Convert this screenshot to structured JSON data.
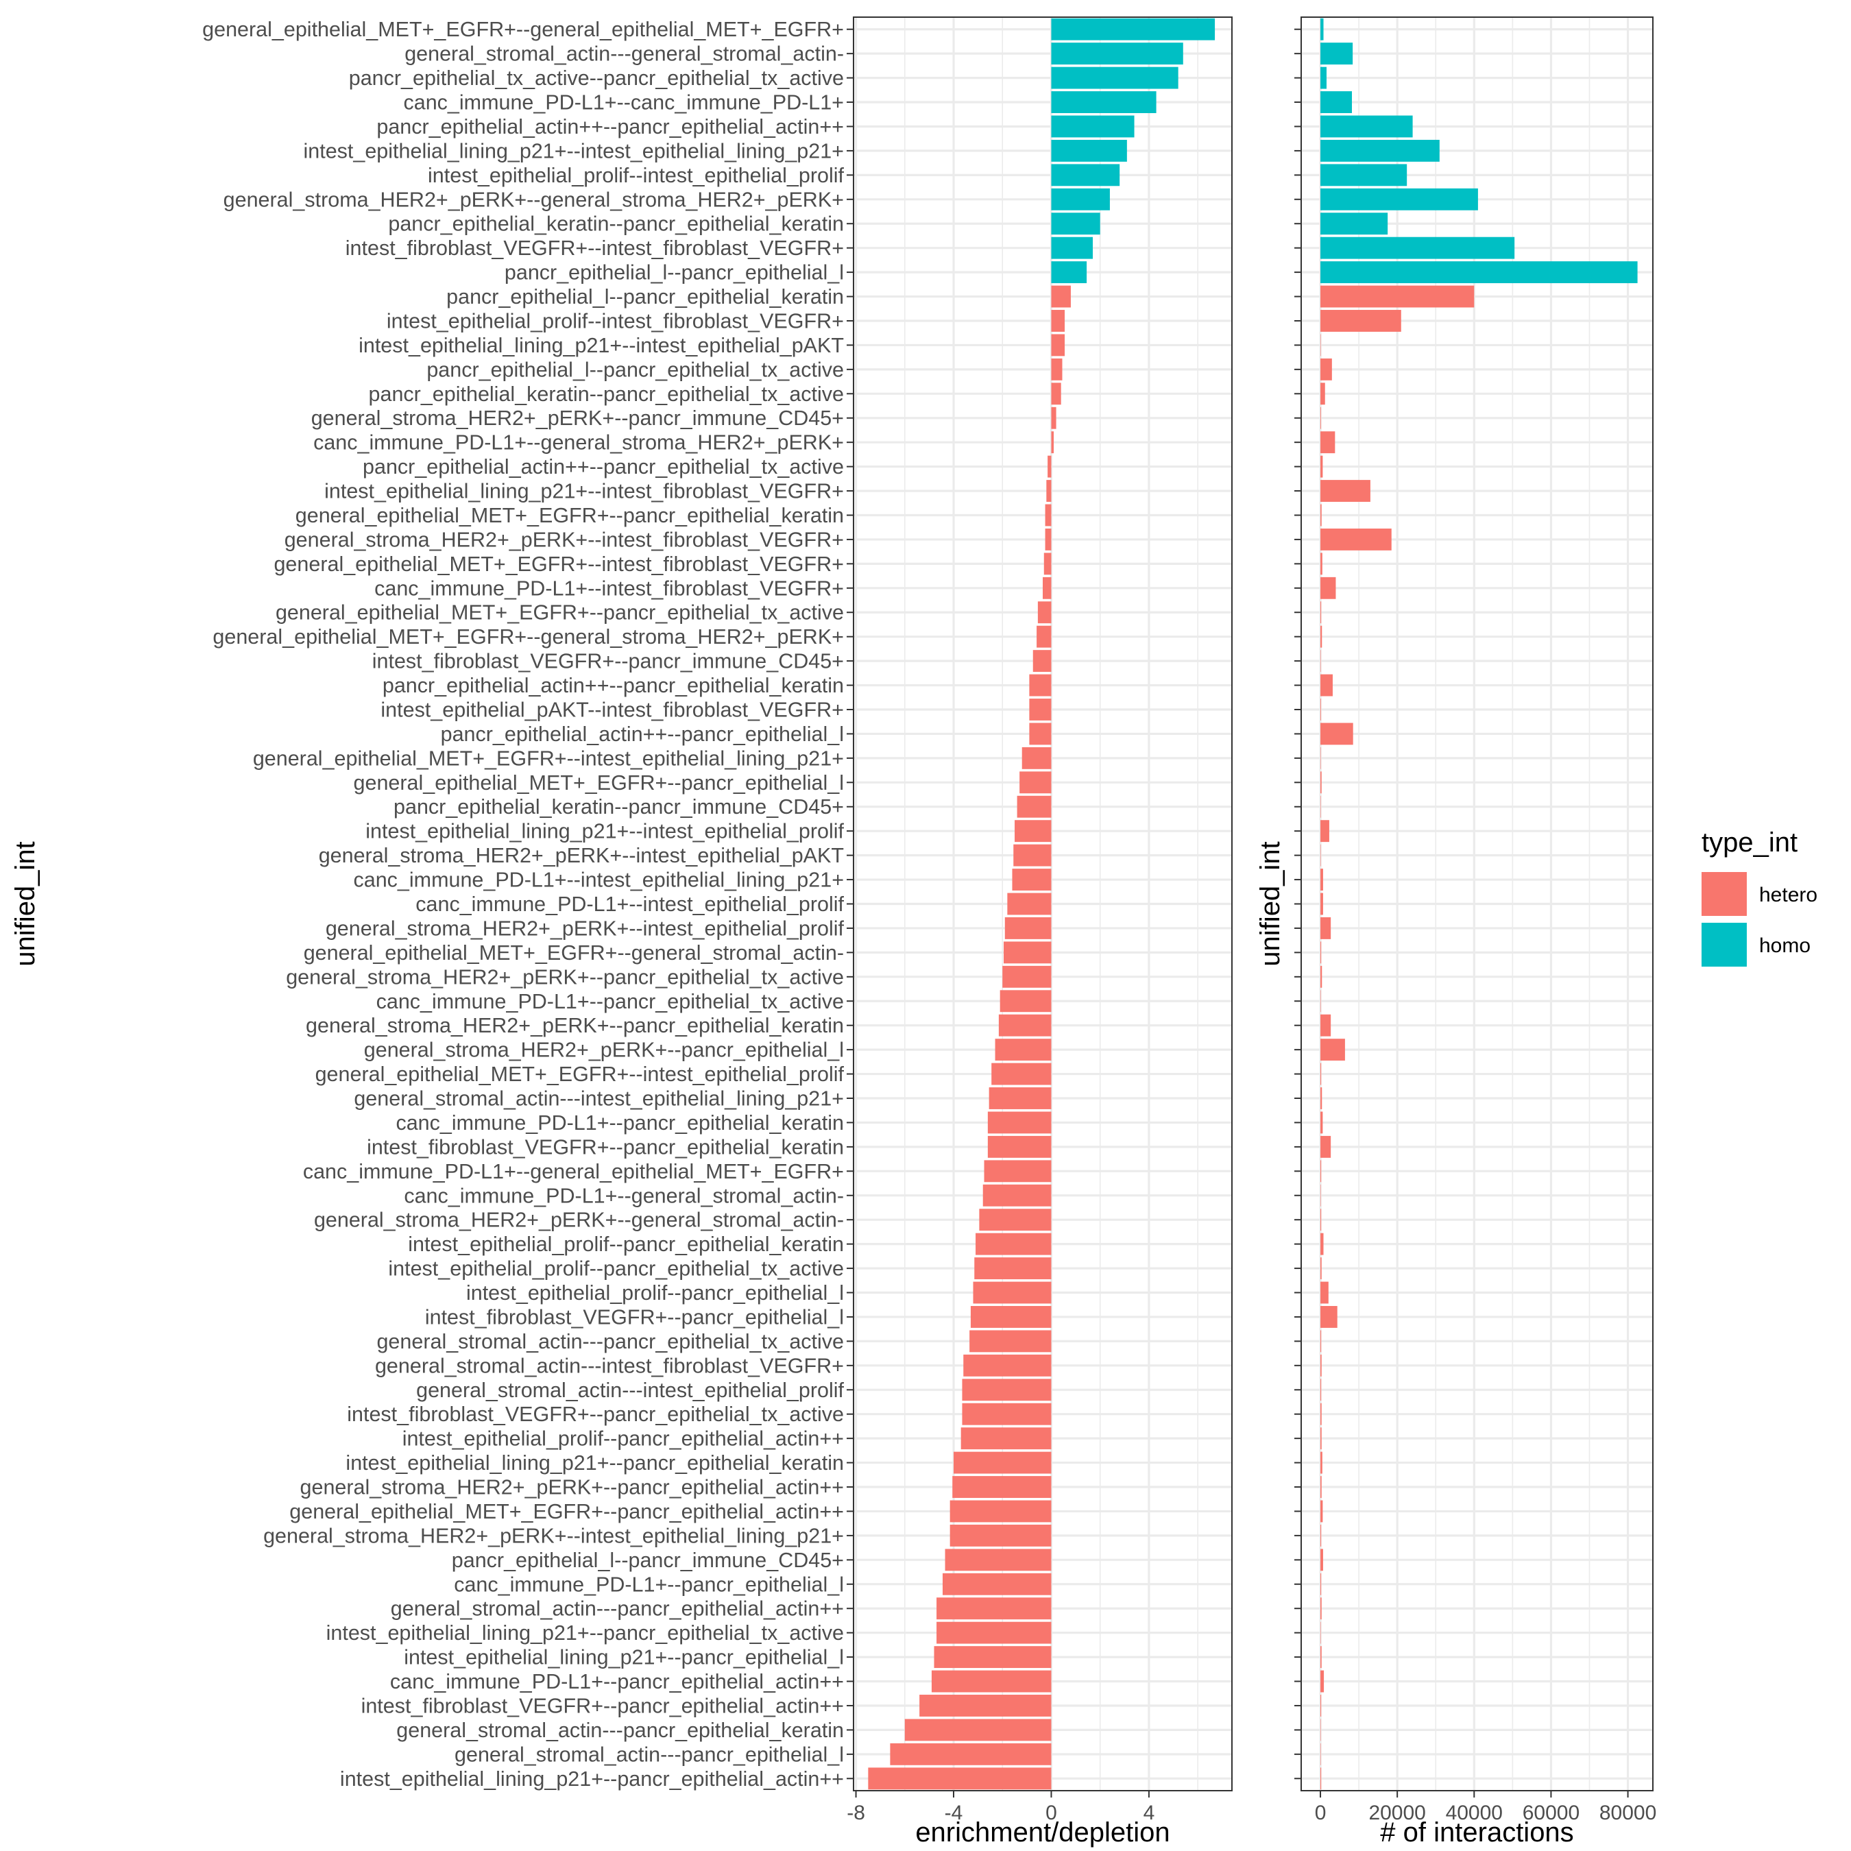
{
  "chart_data": [
    {
      "type": "bar",
      "orientation": "horizontal",
      "xlabel": "enrichment/depletion",
      "ylabel": "unified_int",
      "xlim": [
        -8.1,
        7.4
      ],
      "xticks": [
        -8,
        -4,
        0,
        4
      ],
      "grid": true,
      "categories": [
        "general_epithelial_MET+_EGFR+--general_epithelial_MET+_EGFR+",
        "general_stromal_actin---general_stromal_actin-",
        "pancr_epithelial_tx_active--pancr_epithelial_tx_active",
        "canc_immune_PD-L1+--canc_immune_PD-L1+",
        "pancr_epithelial_actin++--pancr_epithelial_actin++",
        "intest_epithelial_lining_p21+--intest_epithelial_lining_p21+",
        "intest_epithelial_prolif--intest_epithelial_prolif",
        "general_stroma_HER2+_pERK+--general_stroma_HER2+_pERK+",
        "pancr_epithelial_keratin--pancr_epithelial_keratin",
        "intest_fibroblast_VEGFR+--intest_fibroblast_VEGFR+",
        "pancr_epithelial_l--pancr_epithelial_l",
        "pancr_epithelial_l--pancr_epithelial_keratin",
        "intest_epithelial_prolif--intest_fibroblast_VEGFR+",
        "intest_epithelial_lining_p21+--intest_epithelial_pAKT",
        "pancr_epithelial_l--pancr_epithelial_tx_active",
        "pancr_epithelial_keratin--pancr_epithelial_tx_active",
        "general_stroma_HER2+_pERK+--pancr_immune_CD45+",
        "canc_immune_PD-L1+--general_stroma_HER2+_pERK+",
        "pancr_epithelial_actin++--pancr_epithelial_tx_active",
        "intest_epithelial_lining_p21+--intest_fibroblast_VEGFR+",
        "general_epithelial_MET+_EGFR+--pancr_epithelial_keratin",
        "general_stroma_HER2+_pERK+--intest_fibroblast_VEGFR+",
        "general_epithelial_MET+_EGFR+--intest_fibroblast_VEGFR+",
        "canc_immune_PD-L1+--intest_fibroblast_VEGFR+",
        "general_epithelial_MET+_EGFR+--pancr_epithelial_tx_active",
        "general_epithelial_MET+_EGFR+--general_stroma_HER2+_pERK+",
        "intest_fibroblast_VEGFR+--pancr_immune_CD45+",
        "pancr_epithelial_actin++--pancr_epithelial_keratin",
        "intest_epithelial_pAKT--intest_fibroblast_VEGFR+",
        "pancr_epithelial_actin++--pancr_epithelial_l",
        "general_epithelial_MET+_EGFR+--intest_epithelial_lining_p21+",
        "general_epithelial_MET+_EGFR+--pancr_epithelial_l",
        "pancr_epithelial_keratin--pancr_immune_CD45+",
        "intest_epithelial_lining_p21+--intest_epithelial_prolif",
        "general_stroma_HER2+_pERK+--intest_epithelial_pAKT",
        "canc_immune_PD-L1+--intest_epithelial_lining_p21+",
        "canc_immune_PD-L1+--intest_epithelial_prolif",
        "general_stroma_HER2+_pERK+--intest_epithelial_prolif",
        "general_epithelial_MET+_EGFR+--general_stromal_actin-",
        "general_stroma_HER2+_pERK+--pancr_epithelial_tx_active",
        "canc_immune_PD-L1+--pancr_epithelial_tx_active",
        "general_stroma_HER2+_pERK+--pancr_epithelial_keratin",
        "general_stroma_HER2+_pERK+--pancr_epithelial_l",
        "general_epithelial_MET+_EGFR+--intest_epithelial_prolif",
        "general_stromal_actin---intest_epithelial_lining_p21+",
        "canc_immune_PD-L1+--pancr_epithelial_keratin",
        "intest_fibroblast_VEGFR+--pancr_epithelial_keratin",
        "canc_immune_PD-L1+--general_epithelial_MET+_EGFR+",
        "canc_immune_PD-L1+--general_stromal_actin-",
        "general_stroma_HER2+_pERK+--general_stromal_actin-",
        "intest_epithelial_prolif--pancr_epithelial_keratin",
        "intest_epithelial_prolif--pancr_epithelial_tx_active",
        "intest_epithelial_prolif--pancr_epithelial_l",
        "intest_fibroblast_VEGFR+--pancr_epithelial_l",
        "general_stromal_actin---pancr_epithelial_tx_active",
        "general_stromal_actin---intest_fibroblast_VEGFR+",
        "general_stromal_actin---intest_epithelial_prolif",
        "intest_fibroblast_VEGFR+--pancr_epithelial_tx_active",
        "intest_epithelial_prolif--pancr_epithelial_actin++",
        "intest_epithelial_lining_p21+--pancr_epithelial_keratin",
        "general_stroma_HER2+_pERK+--pancr_epithelial_actin++",
        "general_epithelial_MET+_EGFR+--pancr_epithelial_actin++",
        "general_stroma_HER2+_pERK+--intest_epithelial_lining_p21+",
        "pancr_epithelial_l--pancr_immune_CD45+",
        "canc_immune_PD-L1+--pancr_epithelial_l",
        "general_stromal_actin---pancr_epithelial_actin++",
        "intest_epithelial_lining_p21+--pancr_epithelial_tx_active",
        "intest_epithelial_lining_p21+--pancr_epithelial_l",
        "canc_immune_PD-L1+--pancr_epithelial_actin++",
        "intest_fibroblast_VEGFR+--pancr_epithelial_actin++",
        "general_stromal_actin---pancr_epithelial_keratin",
        "general_stromal_actin---pancr_epithelial_l",
        "intest_epithelial_lining_p21+--pancr_epithelial_actin++"
      ],
      "type_int": [
        "homo",
        "homo",
        "homo",
        "homo",
        "homo",
        "homo",
        "homo",
        "homo",
        "homo",
        "homo",
        "homo",
        "hetero",
        "hetero",
        "hetero",
        "hetero",
        "hetero",
        "hetero",
        "hetero",
        "hetero",
        "hetero",
        "hetero",
        "hetero",
        "hetero",
        "hetero",
        "hetero",
        "hetero",
        "hetero",
        "hetero",
        "hetero",
        "hetero",
        "hetero",
        "hetero",
        "hetero",
        "hetero",
        "hetero",
        "hetero",
        "hetero",
        "hetero",
        "hetero",
        "hetero",
        "hetero",
        "hetero",
        "hetero",
        "hetero",
        "hetero",
        "hetero",
        "hetero",
        "hetero",
        "hetero",
        "hetero",
        "hetero",
        "hetero",
        "hetero",
        "hetero",
        "hetero",
        "hetero",
        "hetero",
        "hetero",
        "hetero",
        "hetero",
        "hetero",
        "hetero",
        "hetero",
        "hetero",
        "hetero",
        "hetero",
        "hetero",
        "hetero",
        "hetero",
        "hetero",
        "hetero",
        "hetero",
        "hetero"
      ],
      "values": [
        6.7,
        5.4,
        5.2,
        4.3,
        3.4,
        3.1,
        2.8,
        2.4,
        2.0,
        1.7,
        1.45,
        0.8,
        0.55,
        0.55,
        0.45,
        0.4,
        0.2,
        0.1,
        -0.15,
        -0.2,
        -0.25,
        -0.25,
        -0.3,
        -0.35,
        -0.55,
        -0.6,
        -0.75,
        -0.9,
        -0.9,
        -0.9,
        -1.2,
        -1.3,
        -1.4,
        -1.5,
        -1.55,
        -1.6,
        -1.8,
        -1.9,
        -1.95,
        -2.0,
        -2.1,
        -2.15,
        -2.3,
        -2.45,
        -2.55,
        -2.6,
        -2.6,
        -2.75,
        -2.8,
        -2.95,
        -3.1,
        -3.15,
        -3.2,
        -3.3,
        -3.35,
        -3.6,
        -3.65,
        -3.65,
        -3.7,
        -4.0,
        -4.05,
        -4.15,
        -4.15,
        -4.35,
        -4.45,
        -4.7,
        -4.7,
        -4.8,
        -4.9,
        -5.4,
        -6.0,
        -6.6,
        -7.5
      ]
    },
    {
      "type": "bar",
      "orientation": "horizontal",
      "xlabel": "# of interactions",
      "ylabel": "unified_int",
      "xlim": [
        -5000,
        86500
      ],
      "xticks": [
        0,
        20000,
        40000,
        60000,
        80000
      ],
      "grid": true,
      "values": [
        800,
        8400,
        1600,
        8200,
        24000,
        31000,
        22500,
        41000,
        17500,
        50500,
        82500,
        40000,
        21000,
        100,
        3000,
        1200,
        150,
        3800,
        600,
        13000,
        300,
        18500,
        500,
        4000,
        200,
        400,
        100,
        3200,
        150,
        8500,
        100,
        300,
        100,
        2300,
        100,
        700,
        700,
        2700,
        200,
        400,
        100,
        2700,
        6400,
        200,
        400,
        600,
        2700,
        200,
        100,
        200,
        800,
        300,
        2100,
        4400,
        200,
        300,
        200,
        300,
        300,
        500,
        300,
        600,
        200,
        700,
        200,
        300,
        100,
        300,
        900,
        200,
        100,
        100,
        200
      ]
    }
  ],
  "legend": {
    "title": "type_int",
    "placement": "right",
    "items": [
      {
        "label": "hetero",
        "color": "#F8766D"
      },
      {
        "label": "homo",
        "color": "#00BFC4"
      }
    ]
  },
  "colors": {
    "hetero": "#F8766D",
    "homo": "#00BFC4"
  }
}
